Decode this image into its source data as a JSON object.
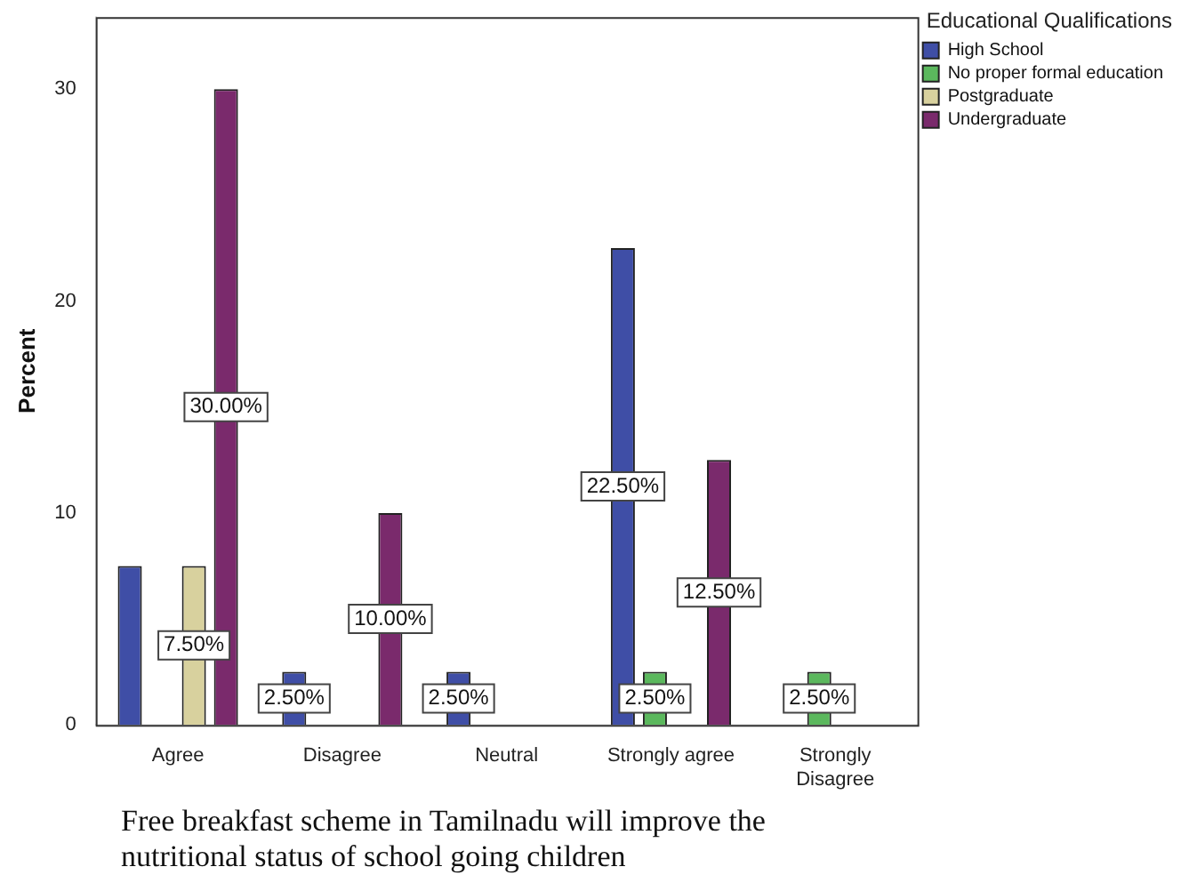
{
  "chart_data": {
    "type": "bar",
    "xlabel": "Free breakfast scheme in Tamilnadu will improve the nutritional status of school going children",
    "ylabel": "Percent",
    "legend_title": "Educational Qualifications",
    "legend": "top right",
    "grid": false,
    "categories": [
      "Agree",
      "Disagree",
      "Neutral",
      "Strongly agree",
      "Strongly Disagree"
    ],
    "ylim": [
      0,
      33.4
    ],
    "yticks": [
      0,
      10,
      20,
      30
    ],
    "series": [
      {
        "name": "High School",
        "color": "#3f4ea6",
        "values": [
          7.5,
          2.5,
          2.5,
          22.5,
          null
        ],
        "value_labels": [
          null,
          "2.50%",
          "2.50%",
          "22.50%",
          null
        ]
      },
      {
        "name": "No proper formal education",
        "color": "#5bb85d",
        "values": [
          null,
          null,
          null,
          2.5,
          2.5
        ],
        "value_labels": [
          null,
          null,
          null,
          "2.50%",
          "2.50%"
        ]
      },
      {
        "name": "Postgraduate",
        "color": "#d8d19e",
        "values": [
          7.5,
          null,
          null,
          null,
          null
        ],
        "value_labels": [
          "7.50%",
          null,
          null,
          null,
          null
        ]
      },
      {
        "name": "Undergraduate",
        "color": "#7a2a6c",
        "values": [
          30,
          10,
          null,
          12.5,
          null
        ],
        "value_labels": [
          "30.00%",
          "10.00%",
          null,
          "12.50%",
          null
        ]
      }
    ]
  }
}
